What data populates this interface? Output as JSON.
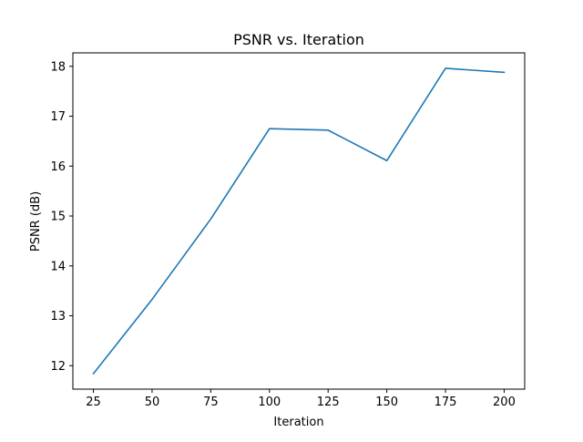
{
  "chart_data": {
    "type": "line",
    "title": "PSNR vs. Iteration",
    "xlabel": "Iteration",
    "ylabel": "PSNR (dB)",
    "x": [
      25,
      50,
      75,
      100,
      125,
      150,
      175,
      200
    ],
    "series": [
      {
        "values": [
          11.84,
          13.33,
          14.94,
          16.75,
          16.72,
          16.11,
          17.96,
          17.88
        ],
        "color": "#1f77b4"
      }
    ],
    "xticks": [
      "25",
      "50",
      "75",
      "100",
      "125",
      "150",
      "175",
      "200"
    ],
    "yticks": [
      "12",
      "13",
      "14",
      "15",
      "16",
      "17",
      "18"
    ],
    "xlim": [
      16.25,
      208.75
    ],
    "ylim": [
      11.53,
      18.27
    ],
    "grid": false,
    "legend": "none"
  }
}
